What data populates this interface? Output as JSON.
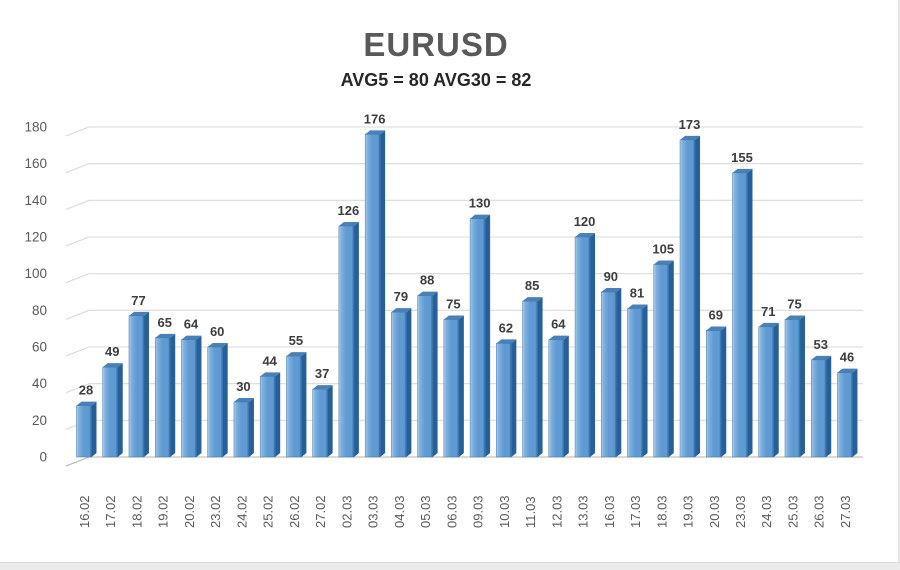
{
  "page": {
    "title": "EURUSD",
    "subtitle": "AVG5 = 80 AVG30 = 82"
  },
  "chart_data": {
    "type": "bar",
    "style": "excel-3d-column",
    "title": "EURUSD",
    "subtitle": "AVG5 = 80 AVG30 = 82",
    "categories": [
      "16.02",
      "17.02",
      "18.02",
      "19.02",
      "20.02",
      "23.02",
      "24.02",
      "25.02",
      "26.02",
      "27.02",
      "02.03",
      "03.03",
      "04.03",
      "05.03",
      "06.03",
      "09.03",
      "10.03",
      "11.03",
      "12.03",
      "13.03",
      "16.03",
      "17.03",
      "18.03",
      "19.03",
      "20.03",
      "23.03",
      "24.03",
      "25.03",
      "26.03",
      "27.03"
    ],
    "values": [
      28,
      49,
      77,
      65,
      64,
      60,
      30,
      44,
      55,
      37,
      126,
      176,
      79,
      88,
      75,
      130,
      62,
      85,
      64,
      120,
      90,
      81,
      105,
      173,
      69,
      155,
      71,
      75,
      53,
      46
    ],
    "xlabel": "",
    "ylabel": "",
    "ylim": [
      0,
      180
    ],
    "yticks": [
      0,
      20,
      40,
      60,
      80,
      100,
      120,
      140,
      160,
      180
    ],
    "grid": true,
    "legend_position": "none",
    "data_labels": true,
    "colors": {
      "bar_highlight": "#b0cfeb",
      "bar_light": "#7fb0de",
      "bar_mid": "#5f9ad2",
      "bar_dark_edge": "#2e68a2",
      "bar_side": "#275f99",
      "bar_cap": "#4b80b6",
      "bar_outline": "#3f74ab",
      "gridline": "#d9d9d9",
      "baseline": "#b3b3b3",
      "axis_text": "#595959",
      "value_label": "#3d3d3d",
      "title_text": "#595959",
      "subtitle_text": "#262626"
    }
  }
}
